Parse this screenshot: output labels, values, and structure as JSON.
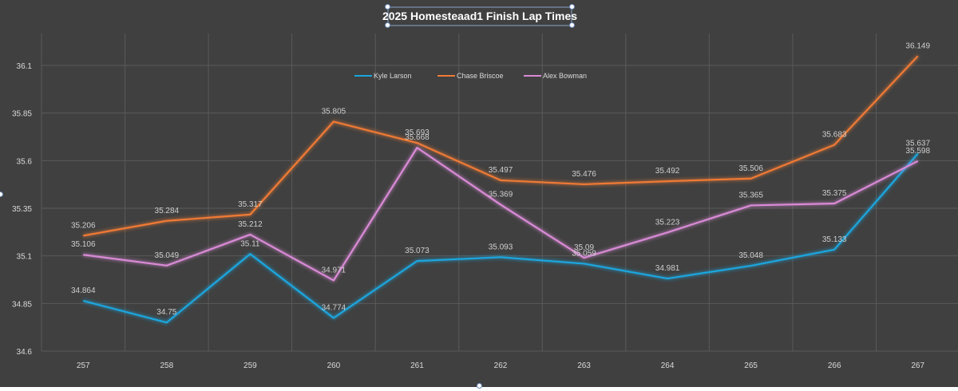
{
  "colors": {
    "background": "#404040",
    "grid": "#5a5a5a",
    "axis_text": "#d9d9d9",
    "label_text": "#cfcfcf",
    "title_text": "#ffffff"
  },
  "chart_data": {
    "type": "line",
    "title": "2025 Homesteaad1 Finish Lap Times",
    "xlabel": "",
    "ylabel": "",
    "x": [
      257,
      258,
      259,
      260,
      261,
      262,
      263,
      264,
      265,
      266,
      267
    ],
    "ylim": [
      34.6,
      36.1
    ],
    "yticks": [
      "34.6",
      "34.85",
      "35.1",
      "35.35",
      "35.6",
      "35.85",
      "36.1"
    ],
    "grid": true,
    "legend_position": "top-center",
    "series": [
      {
        "name": "Kyle Larson",
        "color": "#1aa6de",
        "values": [
          34.864,
          34.75,
          35.11,
          34.774,
          35.073,
          35.093,
          35.059,
          34.981,
          35.048,
          35.133,
          35.637
        ],
        "labels": [
          "34.864",
          "34.75",
          "35.11",
          "34.774",
          "35.073",
          "35.093",
          "35.059",
          "34.981",
          "35.048",
          "35.133",
          "35.637"
        ]
      },
      {
        "name": "Chase Briscoe",
        "color": "#ef7a35",
        "values": [
          35.206,
          35.284,
          35.317,
          35.805,
          35.693,
          35.497,
          35.476,
          35.492,
          35.506,
          35.683,
          36.149
        ],
        "labels": [
          "35.206",
          "35.284",
          "35.317",
          "35.805",
          "35.693",
          "35.497",
          "35.476",
          "35.492",
          "35.506",
          "35.683",
          "36.149"
        ]
      },
      {
        "name": "Alex Bowman",
        "color": "#d98ad6",
        "values": [
          35.106,
          35.049,
          35.212,
          34.971,
          35.668,
          35.369,
          35.09,
          35.223,
          35.365,
          35.375,
          35.598
        ],
        "labels": [
          "35.106",
          "35.049",
          "35.212",
          "34.971",
          "35.668",
          "35.369",
          "35.09",
          "35.223",
          "35.365",
          "35.375",
          "35.598"
        ]
      }
    ]
  }
}
